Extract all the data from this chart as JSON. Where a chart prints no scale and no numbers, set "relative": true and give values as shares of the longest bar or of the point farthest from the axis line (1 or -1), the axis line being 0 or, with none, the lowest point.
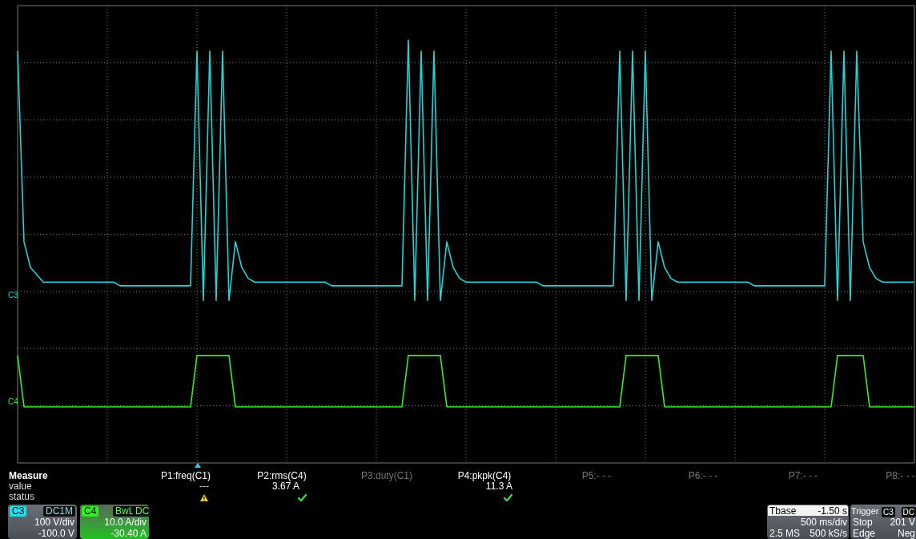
{
  "chart_data": {
    "type": "line",
    "relative": true,
    "grid": true,
    "legend": false,
    "marker": "none",
    "line_style": "solid",
    "categories": [
      null,
      null,
      null,
      null,
      null,
      null,
      null,
      null,
      null,
      null,
      null,
      null,
      null,
      null,
      null,
      null,
      null,
      null,
      null,
      null,
      null,
      null,
      null,
      null,
      null,
      null,
      null,
      null,
      null,
      null,
      null,
      null,
      null,
      null,
      null,
      null,
      null,
      null,
      null,
      null,
      null,
      null,
      null,
      null,
      null,
      null,
      null,
      null,
      null,
      null,
      null,
      null,
      null,
      null,
      null,
      null,
      null,
      null,
      null,
      null,
      null,
      null,
      null,
      null,
      null,
      null,
      null,
      null,
      null,
      null,
      null,
      null,
      null,
      null,
      null,
      null,
      null,
      null,
      null,
      null,
      null,
      null,
      null,
      null,
      null,
      null,
      null,
      null,
      null,
      null,
      null,
      null,
      null,
      null,
      null,
      null,
      null,
      null,
      null,
      null,
      null,
      null,
      null,
      null,
      null,
      null,
      null,
      null,
      null,
      null,
      null,
      null,
      null,
      null,
      null,
      null,
      null,
      null,
      null,
      null,
      null,
      null,
      null,
      null,
      null,
      null,
      null,
      null,
      null,
      null,
      null,
      null,
      null,
      null,
      null,
      null,
      null,
      null,
      null,
      null,
      null
    ],
    "series": [
      {
        "name": "C3",
        "color": "#22d3d8",
        "values": [
          0.97,
          0.45,
          0.38,
          0.36,
          0.34,
          0.34,
          0.34,
          0.34,
          0.34,
          0.34,
          0.34,
          0.34,
          0.34,
          0.34,
          0.34,
          0.34,
          0.33,
          0.33,
          0.33,
          0.33,
          0.33,
          0.33,
          0.33,
          0.33,
          0.33,
          0.33,
          0.33,
          0.33,
          0.97,
          0.29,
          0.97,
          0.29,
          0.97,
          0.29,
          0.45,
          0.38,
          0.35,
          0.34,
          0.34,
          0.34,
          0.34,
          0.34,
          0.34,
          0.34,
          0.34,
          0.34,
          0.34,
          0.34,
          0.34,
          0.33,
          0.33,
          0.33,
          0.33,
          0.33,
          0.33,
          0.33,
          0.33,
          0.33,
          0.33,
          0.33,
          0.33,
          1.0,
          0.29,
          0.97,
          0.29,
          0.97,
          0.29,
          0.45,
          0.38,
          0.35,
          0.34,
          0.34,
          0.34,
          0.34,
          0.34,
          0.34,
          0.34,
          0.34,
          0.34,
          0.34,
          0.34,
          0.34,
          0.33,
          0.33,
          0.33,
          0.33,
          0.33,
          0.33,
          0.33,
          0.33,
          0.33,
          0.33,
          0.33,
          0.33,
          0.97,
          0.29,
          0.97,
          0.29,
          0.97,
          0.29,
          0.45,
          0.38,
          0.35,
          0.34,
          0.34,
          0.34,
          0.34,
          0.34,
          0.34,
          0.34,
          0.34,
          0.34,
          0.34,
          0.34,
          0.34,
          0.33,
          0.33,
          0.33,
          0.33,
          0.33,
          0.33,
          0.33,
          0.33,
          0.33,
          0.33,
          0.33,
          0.33,
          0.97,
          0.29,
          0.97,
          0.29,
          0.97,
          0.45,
          0.38,
          0.35,
          0.34,
          0.34,
          0.34,
          0.34,
          0.34,
          0.34
        ]
      },
      {
        "name": "C4",
        "color": "#33ee22",
        "values": [
          0.14,
          0,
          0,
          0,
          0,
          0,
          0,
          0,
          0,
          0,
          0,
          0,
          0,
          0,
          0,
          0,
          0,
          0,
          0,
          0,
          0,
          0,
          0,
          0,
          0,
          0,
          0,
          0,
          0.14,
          0.14,
          0.14,
          0.14,
          0.14,
          0.14,
          0,
          0,
          0,
          0,
          0,
          0,
          0,
          0,
          0,
          0,
          0,
          0,
          0,
          0,
          0,
          0,
          0,
          0,
          0,
          0,
          0,
          0,
          0,
          0,
          0,
          0,
          0,
          0.14,
          0.14,
          0.14,
          0.14,
          0.14,
          0.14,
          0,
          0,
          0,
          0,
          0,
          0,
          0,
          0,
          0,
          0,
          0,
          0,
          0,
          0,
          0,
          0,
          0,
          0,
          0,
          0,
          0,
          0,
          0,
          0,
          0,
          0,
          0,
          0,
          0.14,
          0.14,
          0.14,
          0.14,
          0.14,
          0.14,
          0,
          0,
          0,
          0,
          0,
          0,
          0,
          0,
          0,
          0,
          0,
          0,
          0,
          0,
          0,
          0,
          0,
          0,
          0,
          0,
          0,
          0,
          0,
          0,
          0,
          0,
          0,
          0.14,
          0.14,
          0.14,
          0.14,
          0.14,
          0,
          0,
          0,
          0,
          0,
          0,
          0,
          0
        ]
      }
    ],
    "annotations": [
      "Measure",
      "value",
      "status",
      "P1:freq(C1)",
      "---",
      "P2:rms(C4)",
      "3.67 A",
      "P3:duty(C1)",
      "P4:pkpk(C4)",
      "11.3 A",
      "P5:- - -",
      "P6:- - -",
      "P7:- - -",
      "P8:- - -",
      "C3",
      "DC1M",
      "100 V/div",
      "-100.0 V",
      "C4",
      "BwL",
      "DC",
      "10.0 A/div",
      "-30.40 A",
      "Tbase",
      "-1.50 s",
      "500 ms/div",
      "2.5 MS",
      "500 kS/s",
      "Trigger",
      "C3",
      "DC",
      "Stop",
      "201 V",
      "Edge",
      "Neg"
    ]
  }
}
